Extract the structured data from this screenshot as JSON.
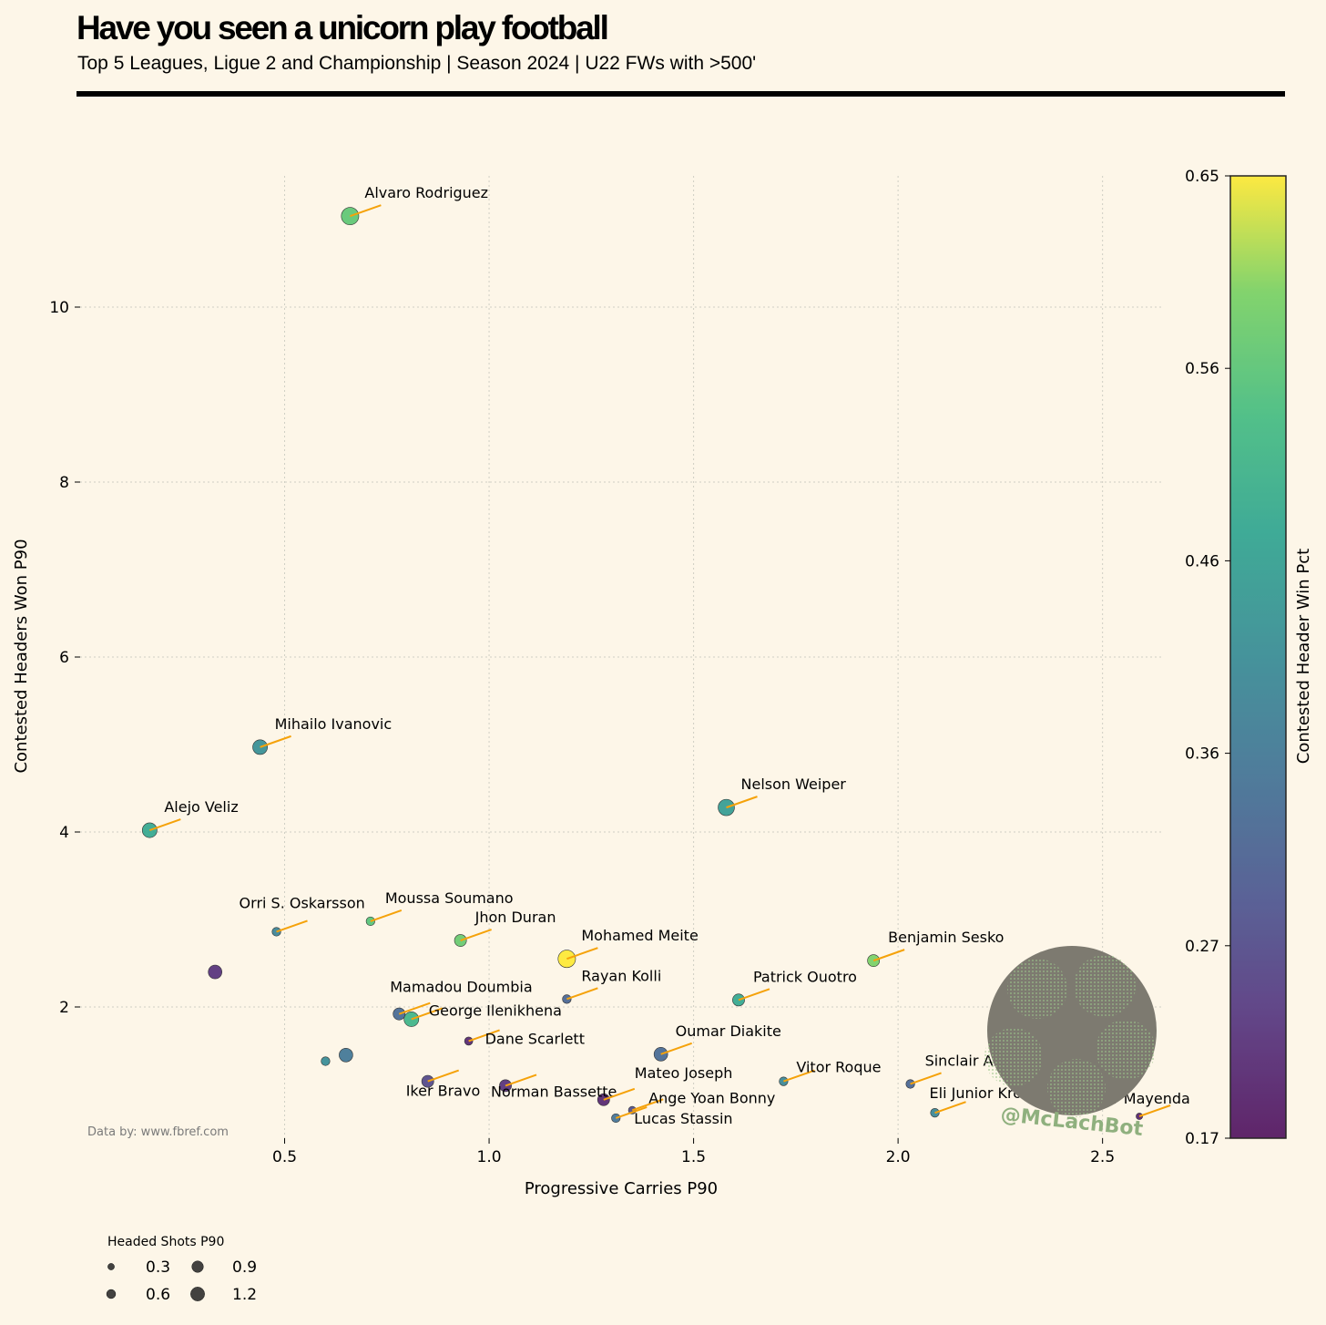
{
  "title": "Have you seen a unicorn play football",
  "subtitle": "Top 5 Leagues, Ligue 2 and Championship | Season 2024 | U22 FWs with >500'",
  "source": "Data by: www.fbref.com",
  "watermark": "@McLachBot",
  "colors": {
    "background": "#fdf6e8",
    "annotation_line": "#f5a20a",
    "grid": "#cfcfc4",
    "logo_disc": "#7d7a70",
    "logo_text": "#8fb07e"
  },
  "chart_data": {
    "type": "scatter",
    "xlabel": "Progressive Carries P90",
    "ylabel": "Contested Headers Won P90",
    "xlim": [
      0.0,
      2.65
    ],
    "ylim": [
      0.5,
      11.5
    ],
    "xticks": [
      0.5,
      1.0,
      1.5,
      2.0,
      2.5
    ],
    "xtick_labels": [
      "0.5",
      "1.0",
      "1.5",
      "2.0",
      "2.5"
    ],
    "yticks": [
      2,
      4,
      6,
      8,
      10
    ],
    "ytick_labels": [
      "2",
      "4",
      "6",
      "8",
      "10"
    ],
    "grid": true,
    "colorbar": {
      "label": "Contested Header Win Pct",
      "range": [
        0.17,
        0.65
      ],
      "ticks": [
        "0.17",
        "0.27",
        "0.36",
        "0.46",
        "0.56",
        "0.65"
      ],
      "colormap": "viridis"
    },
    "size_legend": {
      "title": "Headed Shots P90",
      "entries": [
        {
          "label": "0.3",
          "value": 0.3
        },
        {
          "label": "0.6",
          "value": 0.6
        },
        {
          "label": "0.9",
          "value": 0.9
        },
        {
          "label": "1.2",
          "value": 1.2
        }
      ]
    },
    "points": [
      {
        "name": "Alvaro Rodriguez",
        "x": 0.66,
        "y": 11.04,
        "win_pct": 0.56,
        "headed_shots": 1.1
      },
      {
        "name": "Mihailo Ivanovic",
        "x": 0.44,
        "y": 4.97,
        "win_pct": 0.42,
        "headed_shots": 0.85
      },
      {
        "name": "Alejo Veliz",
        "x": 0.17,
        "y": 4.02,
        "win_pct": 0.48,
        "headed_shots": 0.85
      },
      {
        "name": "Nelson Weiper",
        "x": 1.58,
        "y": 4.28,
        "win_pct": 0.45,
        "headed_shots": 1.0
      },
      {
        "name": "Orri S. Oskarsson",
        "x": 0.48,
        "y": 2.86,
        "win_pct": 0.39,
        "headed_shots": 0.3
      },
      {
        "name": "Moussa Soumano",
        "x": 0.71,
        "y": 2.98,
        "win_pct": 0.55,
        "headed_shots": 0.3
      },
      {
        "name": "Jhon Duran",
        "x": 0.93,
        "y": 2.76,
        "win_pct": 0.57,
        "headed_shots": 0.6
      },
      {
        "name": "Mohamed Meite",
        "x": 1.19,
        "y": 2.55,
        "win_pct": 0.65,
        "headed_shots": 1.1
      },
      {
        "name": "Benjamin Sesko",
        "x": 1.94,
        "y": 2.53,
        "win_pct": 0.59,
        "headed_shots": 0.6
      },
      {
        "name": "",
        "x": 0.33,
        "y": 2.4,
        "win_pct": 0.22,
        "headed_shots": 0.75
      },
      {
        "name": "Rayan Kolli",
        "x": 1.19,
        "y": 2.09,
        "win_pct": 0.32,
        "headed_shots": 0.3
      },
      {
        "name": "Patrick Ouotro",
        "x": 1.61,
        "y": 2.08,
        "win_pct": 0.48,
        "headed_shots": 0.6
      },
      {
        "name": "Mamadou Doumbia",
        "x": 0.78,
        "y": 1.92,
        "win_pct": 0.33,
        "headed_shots": 0.6
      },
      {
        "name": "George Ilenikhena",
        "x": 0.81,
        "y": 1.86,
        "win_pct": 0.51,
        "headed_shots": 0.85
      },
      {
        "name": "Dane Scarlett",
        "x": 0.95,
        "y": 1.61,
        "win_pct": 0.2,
        "headed_shots": 0.25
      },
      {
        "name": "Oumar Diakite",
        "x": 1.42,
        "y": 1.46,
        "win_pct": 0.33,
        "headed_shots": 0.75
      },
      {
        "name": "",
        "x": 0.6,
        "y": 1.38,
        "win_pct": 0.41,
        "headed_shots": 0.3
      },
      {
        "name": "",
        "x": 0.65,
        "y": 1.45,
        "win_pct": 0.36,
        "headed_shots": 0.75
      },
      {
        "name": "Iker Bravo",
        "x": 0.85,
        "y": 1.15,
        "win_pct": 0.26,
        "headed_shots": 0.6
      },
      {
        "name": "Norman Bassette",
        "x": 1.04,
        "y": 1.1,
        "win_pct": 0.22,
        "headed_shots": 0.6
      },
      {
        "name": "Mateo Joseph",
        "x": 1.28,
        "y": 0.94,
        "win_pct": 0.2,
        "headed_shots": 0.6
      },
      {
        "name": "Ange Yoan Bonny",
        "x": 1.35,
        "y": 0.82,
        "win_pct": 0.27,
        "headed_shots": 0.2
      },
      {
        "name": "Lucas Stassin",
        "x": 1.31,
        "y": 0.73,
        "win_pct": 0.35,
        "headed_shots": 0.3
      },
      {
        "name": "Vitor Roque",
        "x": 1.72,
        "y": 1.15,
        "win_pct": 0.4,
        "headed_shots": 0.3
      },
      {
        "name": "Sinclair Armstrong",
        "x": 2.03,
        "y": 1.12,
        "win_pct": 0.32,
        "headed_shots": 0.3
      },
      {
        "name": "Eli Junior Kroupi",
        "x": 2.09,
        "y": 0.79,
        "win_pct": 0.4,
        "headed_shots": 0.3
      },
      {
        "name": "Eliezer Mayenda",
        "x": 2.59,
        "y": 0.75,
        "win_pct": 0.19,
        "headed_shots": 0.1
      }
    ]
  }
}
